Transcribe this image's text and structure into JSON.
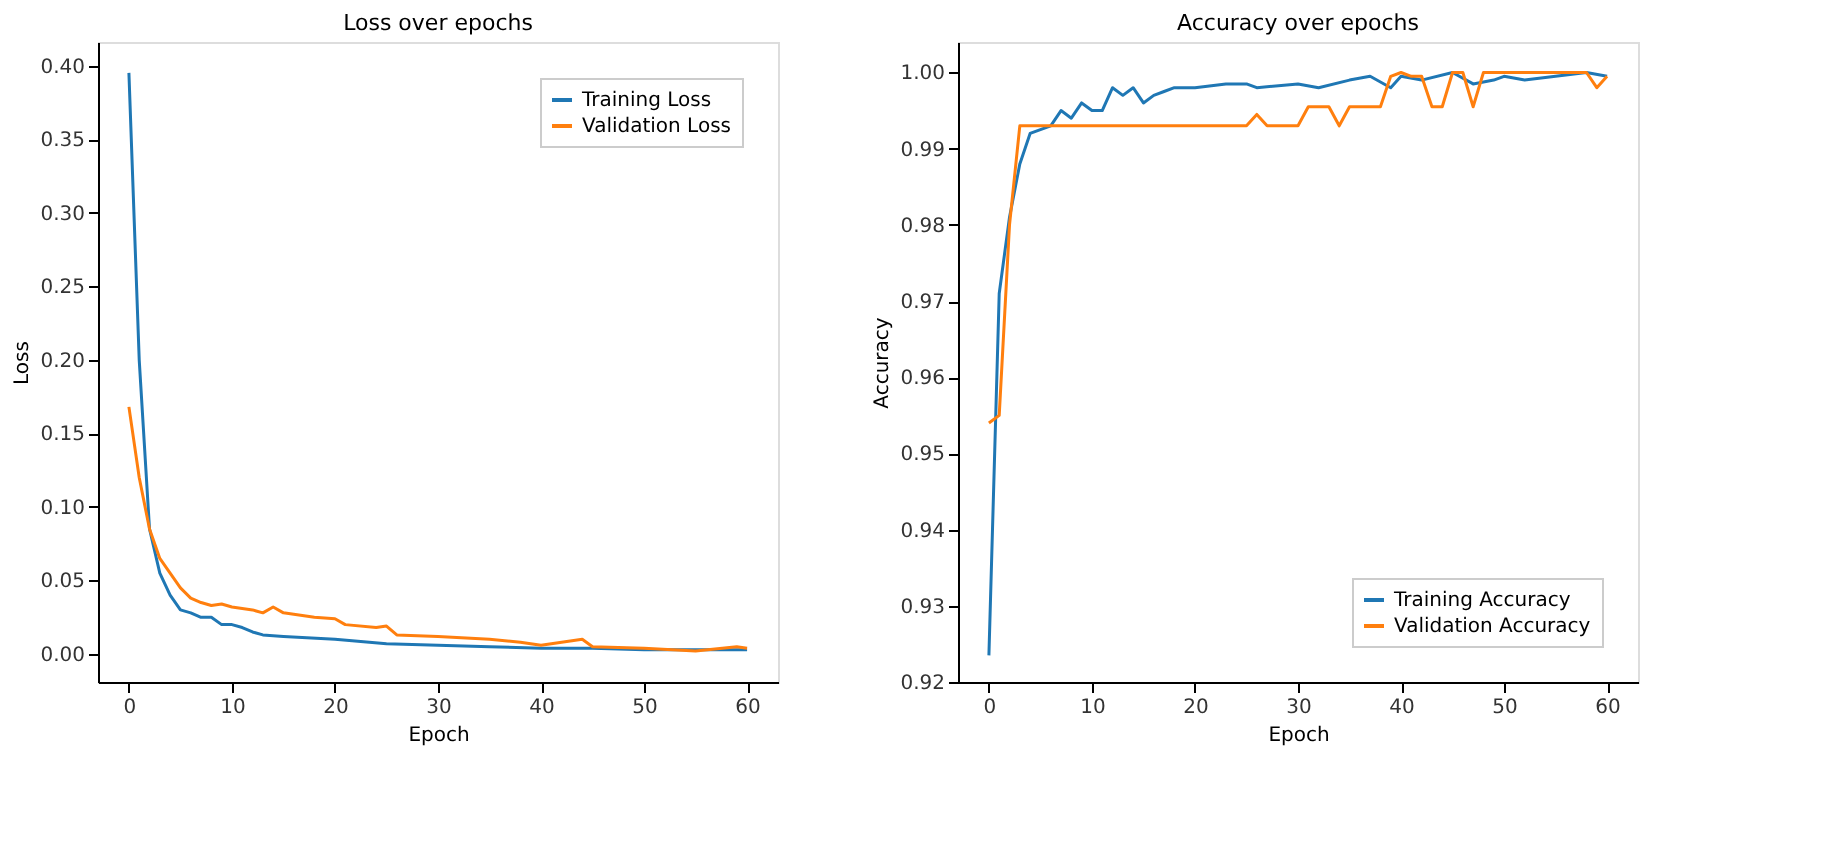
{
  "chart_data": [
    {
      "type": "line",
      "title": "Loss over epochs",
      "xlabel": "Epoch",
      "ylabel": "Loss",
      "xlim": [
        -3,
        63
      ],
      "xticks": [
        0,
        10,
        20,
        30,
        40,
        50,
        60
      ],
      "ylim": [
        -0.019,
        0.416
      ],
      "yticks": [
        {
          "value": 0,
          "label": "0.00"
        },
        0.05,
        {
          "value": 0.1,
          "label": "0.10"
        },
        0.15,
        {
          "value": 0.2,
          "label": "0.20"
        },
        0.25,
        {
          "value": 0.3,
          "label": "0.30"
        },
        0.35,
        {
          "value": 0.4,
          "label": "0.40"
        }
      ],
      "grid": false,
      "legend": "top right",
      "line_style": "solid",
      "marker": "none",
      "series": [
        {
          "name": "Training Loss",
          "color": "#1f77b4",
          "x": [
            0,
            1,
            2,
            3,
            4,
            5,
            6,
            7,
            8,
            9,
            10,
            11,
            12,
            13,
            15,
            20,
            25,
            30,
            35,
            40,
            45,
            50,
            55,
            60
          ],
          "values": [
            0.395,
            0.2,
            0.085,
            0.055,
            0.04,
            0.03,
            0.028,
            0.025,
            0.025,
            0.02,
            0.02,
            0.018,
            0.015,
            0.013,
            0.012,
            0.01,
            0.007,
            0.006,
            0.005,
            0.004,
            0.004,
            0.003,
            0.003,
            0.003
          ]
        },
        {
          "name": "Validation Loss",
          "color": "#ff7f0e",
          "x": [
            0,
            1,
            2,
            3,
            4,
            5,
            6,
            7,
            8,
            9,
            10,
            12,
            13,
            14,
            15,
            18,
            20,
            21,
            24,
            25,
            26,
            30,
            35,
            38,
            40,
            44,
            45,
            50,
            55,
            59,
            60
          ],
          "values": [
            0.168,
            0.12,
            0.085,
            0.065,
            0.055,
            0.045,
            0.038,
            0.035,
            0.033,
            0.034,
            0.032,
            0.03,
            0.028,
            0.032,
            0.028,
            0.025,
            0.024,
            0.02,
            0.018,
            0.019,
            0.013,
            0.012,
            0.01,
            0.008,
            0.006,
            0.01,
            0.005,
            0.004,
            0.002,
            0.005,
            0.004
          ]
        }
      ]
    },
    {
      "type": "line",
      "title": "Accuracy over epochs",
      "xlabel": "Epoch",
      "ylabel": "Accuracy",
      "xlim": [
        -3,
        63
      ],
      "xticks": [
        0,
        10,
        20,
        30,
        40,
        50,
        60
      ],
      "ylim": [
        0.92,
        1.004
      ],
      "yticks": [
        0.92,
        0.93,
        0.94,
        0.95,
        0.96,
        0.97,
        0.98,
        0.99,
        {
          "value": 1,
          "label": "1.00"
        }
      ],
      "grid": false,
      "legend": "bottom right",
      "line_style": "solid",
      "marker": "none",
      "series": [
        {
          "name": "Training Accuracy",
          "color": "#1f77b4",
          "x": [
            0,
            1,
            2,
            3,
            4,
            5,
            6,
            7,
            8,
            9,
            10,
            11,
            12,
            13,
            14,
            15,
            16,
            17,
            18,
            20,
            23,
            25,
            26,
            30,
            32,
            35,
            37,
            39,
            40,
            42,
            45,
            47,
            49,
            50,
            52,
            55,
            58,
            60
          ],
          "values": [
            0.9235,
            0.971,
            0.981,
            0.988,
            0.992,
            0.9925,
            0.993,
            0.995,
            0.994,
            0.996,
            0.995,
            0.995,
            0.998,
            0.997,
            0.998,
            0.996,
            0.997,
            0.9975,
            0.998,
            0.998,
            0.9985,
            0.9985,
            0.998,
            0.9985,
            0.998,
            0.999,
            0.9995,
            0.998,
            0.9995,
            0.999,
            1.0,
            0.9985,
            0.999,
            0.9995,
            0.999,
            0.9995,
            1.0,
            0.9995
          ]
        },
        {
          "name": "Validation Accuracy",
          "color": "#ff7f0e",
          "x": [
            0,
            1,
            2,
            3,
            4,
            7,
            25,
            26,
            27,
            30,
            31,
            33,
            34,
            35,
            38,
            39,
            40,
            41,
            42,
            43,
            44,
            45,
            46,
            47,
            48,
            55,
            58,
            59,
            60
          ],
          "values": [
            0.954,
            0.955,
            0.98,
            0.993,
            0.993,
            0.993,
            0.993,
            0.9945,
            0.993,
            0.993,
            0.9955,
            0.9955,
            0.993,
            0.9955,
            0.9955,
            0.9995,
            1.0,
            0.9995,
            0.9995,
            0.9955,
            0.9955,
            1.0,
            1.0,
            0.9955,
            1.0,
            1.0,
            1.0,
            0.998,
            0.9995
          ]
        }
      ]
    }
  ]
}
